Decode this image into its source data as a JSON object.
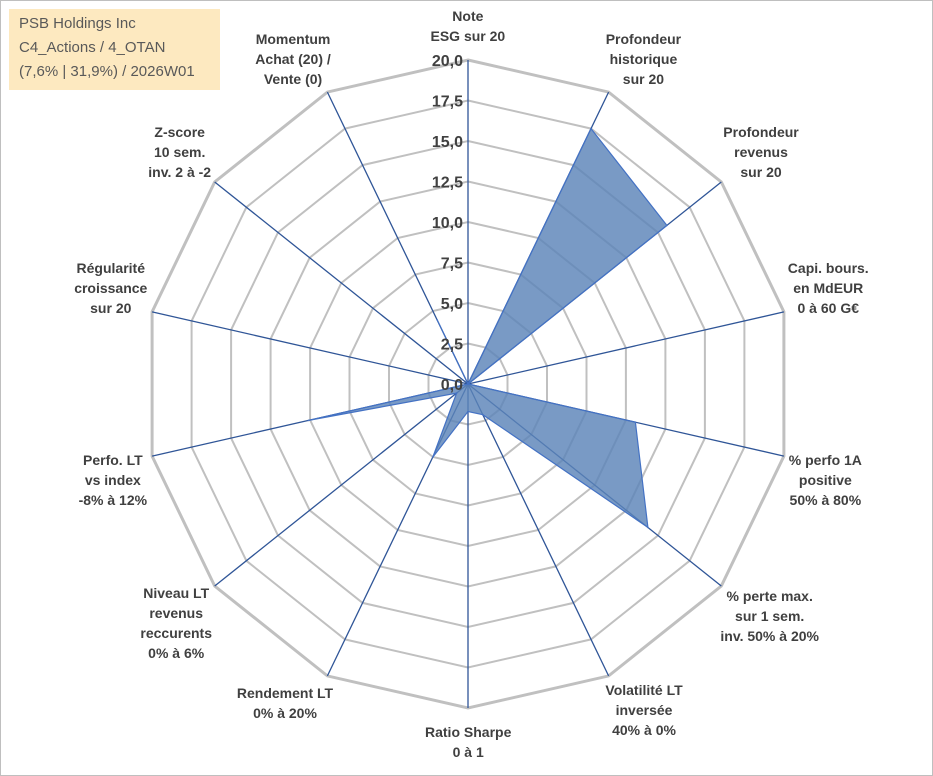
{
  "info_box": {
    "line1": "PSB Holdings Inc",
    "line2": "C4_Actions / 4_OTAN",
    "line3": "(7,6% | 31,9%) / 2026W01"
  },
  "colors": {
    "grid": "#c0c0c0",
    "spoke": "#2f5597",
    "fill": "#5b84b8",
    "stroke": "#4472c4",
    "info_bg": "#fde9c0"
  },
  "chart_data": {
    "type": "radar",
    "title": "",
    "rmax": 20,
    "tick_step": 2.5,
    "tick_labels": [
      "0,0",
      "2,5",
      "5,0",
      "7,5",
      "10,0",
      "12,5",
      "15,0",
      "17,5",
      "20,0"
    ],
    "categories": [
      [
        "Note",
        "ESG sur 20"
      ],
      [
        "Profondeur",
        "historique",
        "sur 20"
      ],
      [
        "Profondeur",
        "revenus",
        "sur 20"
      ],
      [
        "Capi. bours.",
        "en MdEUR",
        "0 à 60 G€"
      ],
      [
        "% perfo 1A",
        "positive",
        "50% à 80%"
      ],
      [
        "% perte max.",
        "sur 1 sem.",
        "inv. 50% à 20%"
      ],
      [
        "Volatilité LT",
        "inversée",
        "40% à 0%"
      ],
      [
        "Ratio Sharpe",
        "0 à 1"
      ],
      [
        "Rendement LT",
        "0% à 20%"
      ],
      [
        "Niveau LT",
        "revenus",
        "reccurents",
        "0% à 6%"
      ],
      [
        "Perfo. LT",
        "vs index",
        "-8% à 12%"
      ],
      [
        "Régularité",
        "croissance",
        "sur 20"
      ],
      [
        "Z-score",
        "10 sem.",
        "inv. 2 à -2"
      ],
      [
        "Momentum",
        "Achat (20) /",
        "Vente (0)"
      ]
    ],
    "series": [
      {
        "name": "PSB Holdings Inc",
        "values": [
          0,
          17.5,
          15.7,
          0,
          10.6,
          14.2,
          2.1,
          1.7,
          5.0,
          0.9,
          10.1,
          0,
          0,
          4.4
        ]
      }
    ]
  }
}
